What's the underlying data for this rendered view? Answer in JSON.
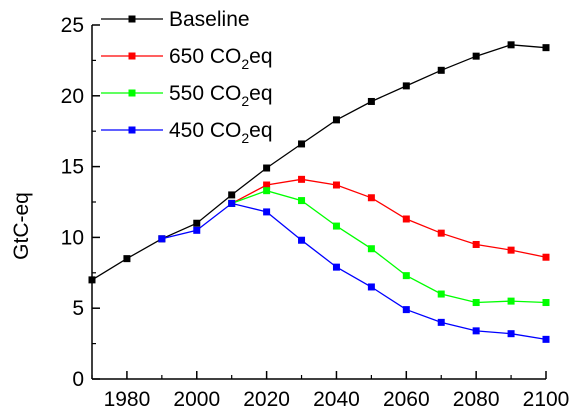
{
  "chart_data": {
    "type": "line",
    "title": "",
    "xlabel": "",
    "ylabel": "GtC-eq",
    "xlim": [
      1970,
      2100
    ],
    "ylim": [
      0,
      25
    ],
    "x_ticks": [
      1980,
      2000,
      2020,
      2040,
      2060,
      2080,
      2100
    ],
    "y_ticks": [
      0,
      5,
      10,
      15,
      20,
      25
    ],
    "grid": false,
    "legend_position": "top-left",
    "series": [
      {
        "name": "Baseline",
        "legend_parts": [
          "Baseline"
        ],
        "color": "#000000",
        "x": [
          1970,
          1980,
          1990,
          2000,
          2010,
          2020,
          2030,
          2040,
          2050,
          2060,
          2070,
          2080,
          2090,
          2100
        ],
        "values": [
          7.0,
          8.5,
          9.9,
          11.0,
          13.0,
          14.9,
          16.6,
          18.3,
          19.6,
          20.7,
          21.8,
          22.8,
          23.6,
          23.4
        ]
      },
      {
        "name": "650 CO2eq",
        "legend_parts": [
          "650 CO",
          "2",
          "eq"
        ],
        "color": "#ff0000",
        "x": [
          2010,
          2020,
          2030,
          2040,
          2050,
          2060,
          2070,
          2080,
          2090,
          2100
        ],
        "values": [
          12.4,
          13.7,
          14.1,
          13.7,
          12.8,
          11.3,
          10.3,
          9.5,
          9.1,
          8.6
        ]
      },
      {
        "name": "550 CO2eq",
        "legend_parts": [
          "550 CO",
          "2",
          "eq"
        ],
        "color": "#00ff00",
        "x": [
          2010,
          2020,
          2030,
          2040,
          2050,
          2060,
          2070,
          2080,
          2090,
          2100
        ],
        "values": [
          12.4,
          13.3,
          12.6,
          10.8,
          9.2,
          7.3,
          6.0,
          5.4,
          5.5,
          5.4
        ]
      },
      {
        "name": "450 CO2eq",
        "legend_parts": [
          "450 CO",
          "2",
          "eq"
        ],
        "color": "#0000ff",
        "x": [
          1990,
          2000,
          2010,
          2020,
          2030,
          2040,
          2050,
          2060,
          2070,
          2080,
          2090,
          2100
        ],
        "values": [
          9.9,
          10.5,
          12.4,
          11.8,
          9.8,
          7.9,
          6.5,
          4.9,
          4.0,
          3.4,
          3.2,
          2.8
        ]
      }
    ]
  }
}
